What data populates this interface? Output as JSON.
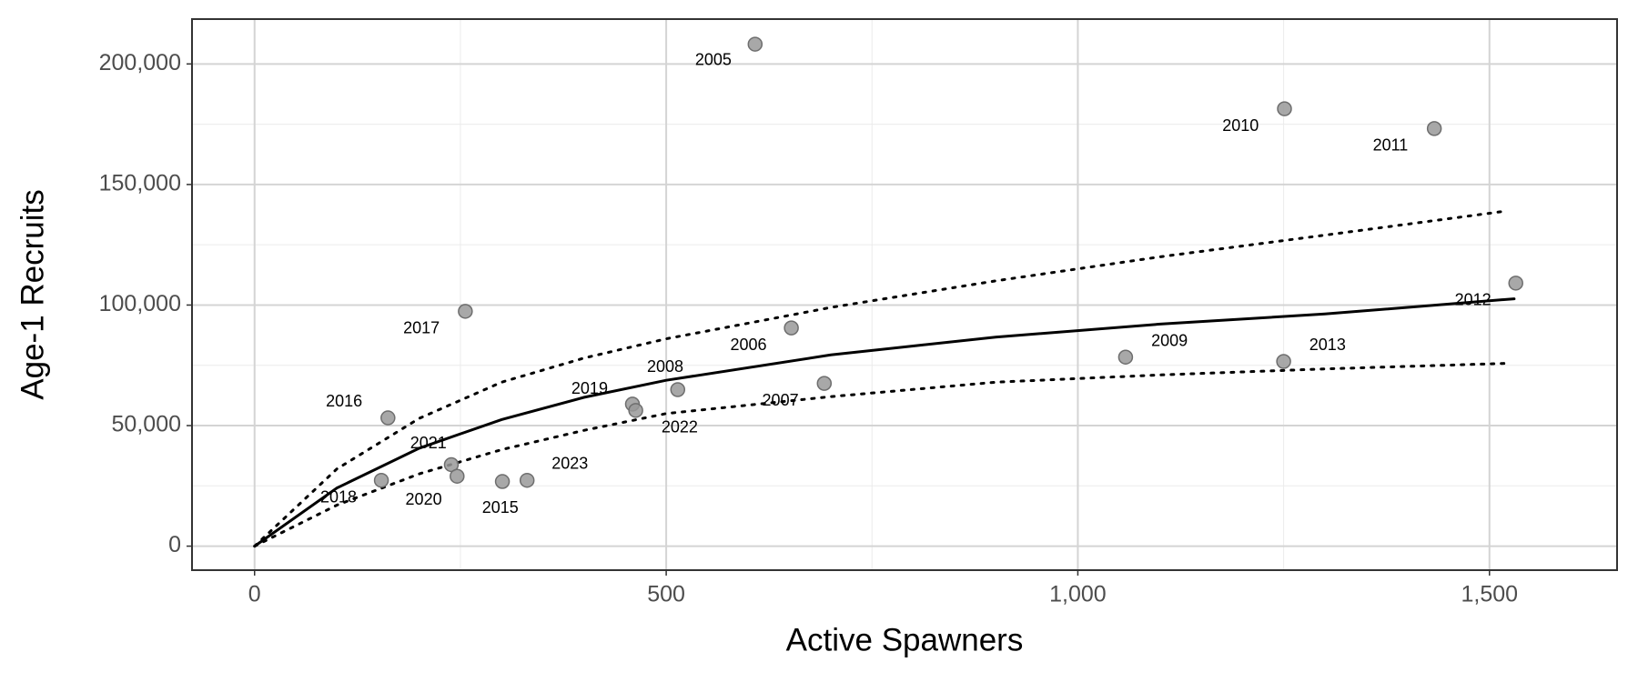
{
  "chart_data": {
    "type": "scatter",
    "x_label": "Active Spawners",
    "y_label": "Age-1 Recruits",
    "labels": [
      "2005",
      "2010",
      "2011",
      "2012",
      "2006",
      "2009",
      "2013",
      "2017",
      "2007",
      "2008",
      "2019",
      "2022",
      "2016",
      "2021",
      "2020",
      "2018",
      "2015",
      "2023"
    ],
    "x": [
      608,
      1251,
      1433,
      1532,
      652,
      1058,
      1250,
      256,
      692,
      514,
      459,
      463,
      162,
      239,
      246,
      154,
      301,
      331
    ],
    "values": [
      208200,
      181400,
      173200,
      109100,
      90500,
      78400,
      76600,
      97400,
      67500,
      64900,
      58900,
      56300,
      53200,
      33800,
      29000,
      27300,
      26800,
      27300
    ],
    "point_color": "#999999",
    "fits": [
      {
        "style": "solid",
        "color": "#000000",
        "x": [
          0,
          100,
          200,
          300,
          400,
          500,
          700,
          900,
          1100,
          1300,
          1530
        ],
        "values": [
          0,
          24100,
          40600,
          52500,
          61700,
          68800,
          79300,
          86700,
          92100,
          96300,
          102600
        ]
      },
      {
        "style": "dotted",
        "color": "#000000",
        "x": [
          0,
          100,
          200,
          300,
          400,
          500,
          700,
          900,
          1100,
          1300,
          1520
        ],
        "values": [
          0,
          32000,
          53000,
          68000,
          78000,
          86000,
          99000,
          110000,
          120000,
          129000,
          139000
        ]
      },
      {
        "style": "dotted",
        "color": "#000000",
        "x": [
          0,
          100,
          200,
          300,
          400,
          500,
          700,
          900,
          1100,
          1300,
          1520
        ],
        "values": [
          0,
          17000,
          30000,
          40000,
          48000,
          55000,
          62000,
          68000,
          71000,
          73500,
          75800
        ]
      }
    ],
    "xlim": [
      -76,
      1655
    ],
    "ylim": [
      -9960,
      218600
    ],
    "xticks": [
      0,
      500,
      {
        "value": 1000,
        "label": "1,000"
      },
      {
        "value": 1500,
        "label": "1,500"
      }
    ],
    "yticks": [
      0,
      {
        "value": 50000,
        "label": "50,000"
      },
      {
        "value": 100000,
        "label": "100,000"
      },
      {
        "value": 150000,
        "label": "150,000"
      },
      {
        "value": 200000,
        "label": "200,000"
      }
    ],
    "minor_xticks": [
      250,
      750,
      1250
    ],
    "minor_yticks": [
      25000,
      75000,
      125000,
      175000
    ],
    "grid": true
  }
}
